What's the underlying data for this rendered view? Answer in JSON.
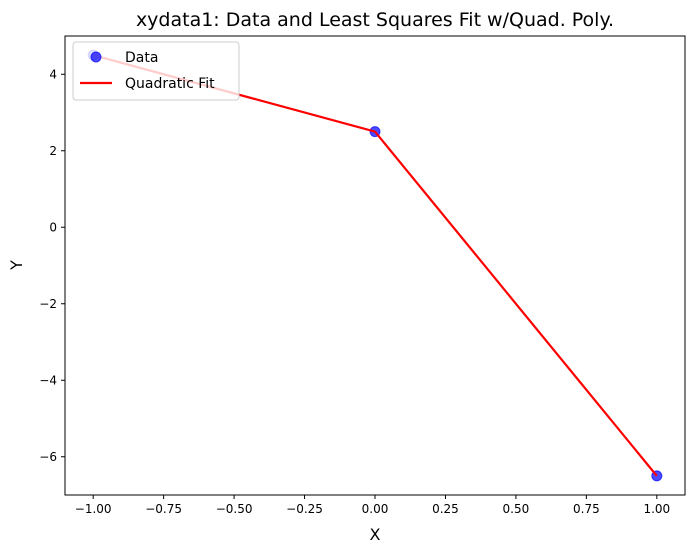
{
  "chart_data": {
    "type": "line",
    "title": "xydata1: Data and Least Squares Fit w/Quad. Poly.",
    "xlabel": "X",
    "ylabel": "Y",
    "xlim": [
      -1.1,
      1.1
    ],
    "ylim": [
      -7.0,
      5.0
    ],
    "grid": false,
    "legend_position": "upper-left",
    "x_ticks": [
      -1.0,
      -0.75,
      -0.5,
      -0.25,
      0.0,
      0.25,
      0.5,
      0.75,
      1.0
    ],
    "x_tick_labels": [
      "−1.00",
      "−0.75",
      "−0.50",
      "−0.25",
      "0.00",
      "0.25",
      "0.50",
      "0.75",
      "1.00"
    ],
    "y_ticks": [
      -6,
      -4,
      -2,
      0,
      2,
      4
    ],
    "y_tick_labels": [
      "−6",
      "−4",
      "−2",
      "0",
      "2",
      "4"
    ],
    "series": [
      {
        "name": "Data",
        "kind": "scatter",
        "color": "#0000ff",
        "alpha": 0.7,
        "x": [
          -1.0,
          0.0,
          1.0
        ],
        "y": [
          4.5,
          2.5,
          -6.5
        ]
      },
      {
        "name": "Quadratic Fit",
        "kind": "line",
        "color": "#ff0000",
        "x": [
          -1.0,
          0.0,
          1.0
        ],
        "y": [
          4.5,
          2.5,
          -6.5
        ]
      }
    ]
  }
}
